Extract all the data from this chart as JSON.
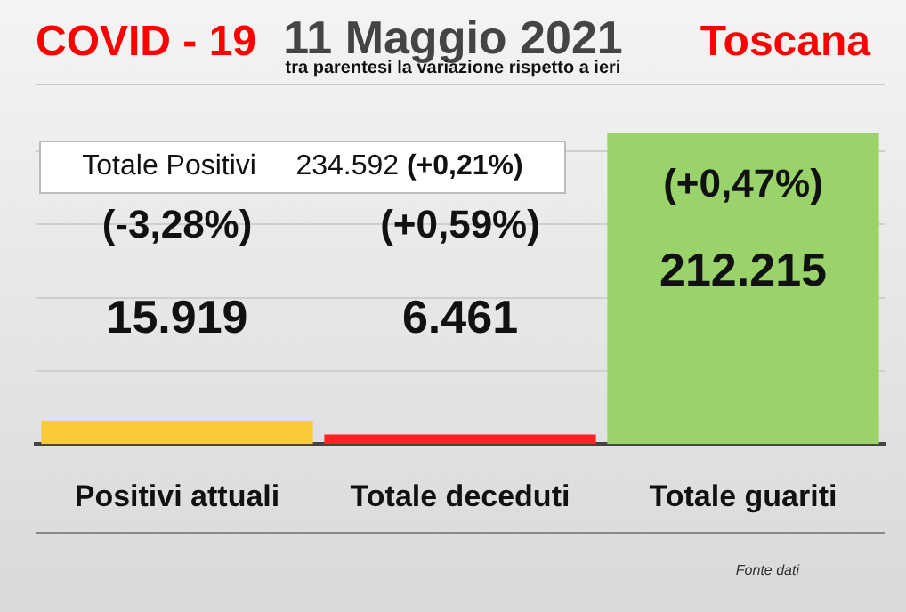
{
  "chart_data": {
    "type": "bar",
    "title": "11 Maggio 2021",
    "subtitle": "tra parentesi la variazione rispetto a ieri",
    "categories": [
      "Positivi attuali",
      "Totale deceduti",
      "Totale guariti"
    ],
    "values": [
      15919,
      6461,
      212215
    ],
    "colors": [
      "#f9c93a",
      "#ff2222",
      "#99d36a"
    ],
    "value_labels": [
      "15.919",
      "6.461",
      "212.215"
    ],
    "ylim": [
      0,
      212215
    ],
    "yticks": [
      {
        "value": 50000,
        "label": null
      },
      {
        "value": 100000,
        "label": null
      },
      {
        "value": 150000,
        "label": null
      },
      {
        "value": 200000,
        "label": null
      }
    ],
    "grid": "y",
    "tick_labels": "x",
    "legend": false,
    "annotations": [
      "COVID - 19",
      "Toscana",
      "Totale Positivi     234.592 (+0,21%)",
      "Fonte dati",
      "(-3,28%)",
      "(+0,59%)",
      "(+0,47%)"
    ]
  }
}
